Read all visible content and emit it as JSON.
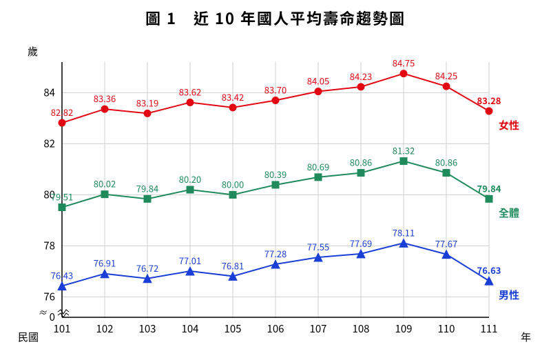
{
  "title": "圖 1　近 10 年國人平均壽命趨勢圖",
  "y_axis_title": "歲",
  "x_axis_prefix": "民國",
  "x_axis_suffix": "年",
  "chart": {
    "type": "line",
    "background_color": "#ffffff",
    "grid_color": "#cfcfcf",
    "axis_color": "#000000",
    "line_width": 2,
    "marker_size": 5,
    "y_axis": {
      "min": 75.2,
      "max": 85.2,
      "ticks": [
        76,
        78,
        80,
        82,
        84
      ],
      "break_below": 76
    },
    "x_categories": [
      "101",
      "102",
      "103",
      "104",
      "105",
      "106",
      "107",
      "108",
      "109",
      "110",
      "111"
    ],
    "series": [
      {
        "name": "女性",
        "label_key": "female",
        "color": "#e30613",
        "marker": "circle",
        "values": [
          82.82,
          83.36,
          83.19,
          83.62,
          83.42,
          83.7,
          84.05,
          84.23,
          84.75,
          84.25,
          83.28
        ]
      },
      {
        "name": "全體",
        "label_key": "total",
        "color": "#1f8a5b",
        "marker": "square",
        "values": [
          79.51,
          80.02,
          79.84,
          80.2,
          80.0,
          80.39,
          80.69,
          80.86,
          81.32,
          80.86,
          79.84
        ]
      },
      {
        "name": "男性",
        "label_key": "male",
        "color": "#1a3fd6",
        "marker": "triangle",
        "values": [
          76.43,
          76.91,
          76.72,
          77.01,
          76.81,
          77.28,
          77.55,
          77.69,
          78.11,
          77.67,
          76.63
        ]
      }
    ],
    "label_fontsize": 13,
    "tick_fontsize": 15,
    "series_label_fontsize": 15
  },
  "legend_labels": {
    "female": "女性",
    "total": "全體",
    "male": "男性"
  }
}
